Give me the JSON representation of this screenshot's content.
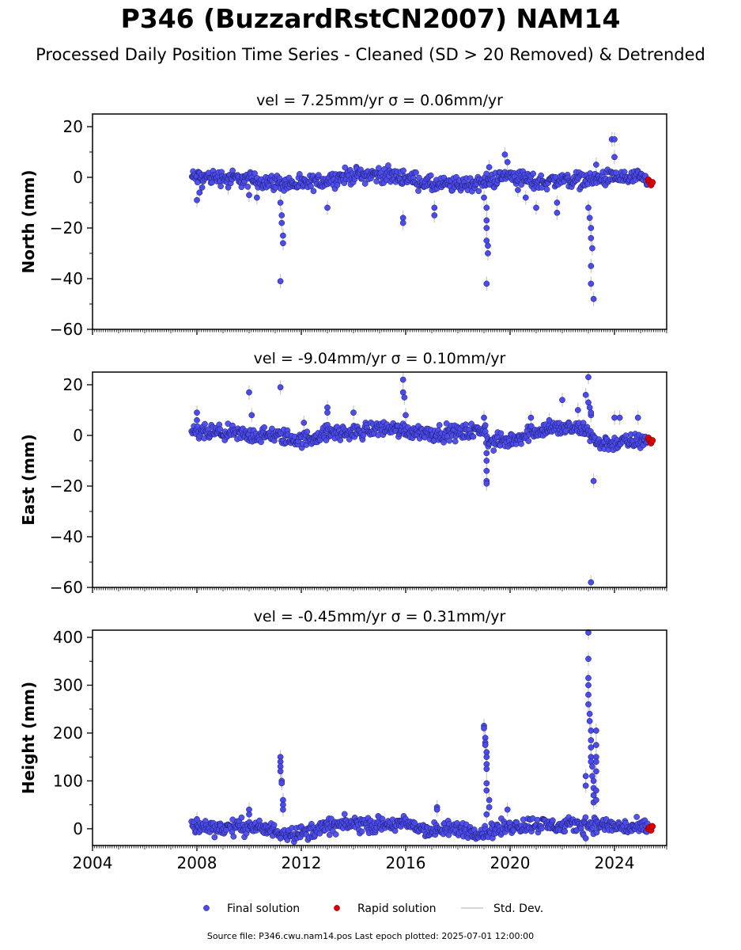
{
  "header": {
    "title": "P346 (BuzzardRstCN2007) NAM14",
    "subtitle": "Processed Daily Position Time Series - Cleaned (SD > 20 Removed) & Detrended"
  },
  "footer": {
    "source": "Source file: P346.cwu.nam14.pos  Last epoch plotted: 2025-07-01 12:00:00"
  },
  "colors": {
    "final": "#4a4aee",
    "final_edge": "#1a1a55",
    "rapid": "#dd0000",
    "std": "#c8c8c8"
  },
  "chart_data": [
    {
      "type": "scatter",
      "title": "vel = 7.25mm/yr   σ = 0.06mm/yr",
      "ylabel": "North (mm)",
      "xlim": [
        2004,
        2026
      ],
      "ylim": [
        -60,
        25
      ],
      "yticks": [
        -60,
        -40,
        -20,
        0,
        20
      ],
      "xticks": [
        2004,
        2008,
        2012,
        2016,
        2020,
        2024
      ],
      "show_xticklabels": false,
      "series": [
        {
          "name": "Final solution",
          "trend": [
            [
              2007.8,
              0
            ],
            [
              2008.5,
              0
            ],
            [
              2009,
              0
            ],
            [
              2010,
              -1
            ],
            [
              2011,
              -2
            ],
            [
              2012,
              -3
            ],
            [
              2013,
              -1
            ],
            [
              2014,
              1
            ],
            [
              2015,
              1
            ],
            [
              2016,
              0
            ],
            [
              2017,
              -3
            ],
            [
              2018,
              -3
            ],
            [
              2019,
              -2
            ],
            [
              2020,
              1
            ],
            [
              2021,
              -2
            ],
            [
              2022,
              -1
            ],
            [
              2023,
              -1
            ],
            [
              2024,
              0
            ],
            [
              2025.3,
              -1
            ]
          ],
          "outliers": [
            [
              2008.0,
              -9
            ],
            [
              2008.1,
              -6
            ],
            [
              2008.2,
              -4
            ],
            [
              2009.2,
              -4
            ],
            [
              2010.0,
              -7
            ],
            [
              2010.3,
              -8
            ],
            [
              2011.2,
              -10
            ],
            [
              2011.25,
              -15
            ],
            [
              2011.25,
              -18
            ],
            [
              2011.3,
              -23
            ],
            [
              2011.3,
              -26
            ],
            [
              2011.2,
              -41
            ],
            [
              2013.0,
              -12
            ],
            [
              2015.9,
              -16
            ],
            [
              2015.9,
              -18
            ],
            [
              2017.1,
              -12
            ],
            [
              2017.1,
              -15
            ],
            [
              2019.0,
              -8
            ],
            [
              2019.1,
              -12
            ],
            [
              2019.1,
              -17
            ],
            [
              2019.1,
              -20
            ],
            [
              2019.1,
              -25
            ],
            [
              2019.15,
              -27
            ],
            [
              2019.15,
              -30
            ],
            [
              2019.1,
              -42
            ],
            [
              2019.2,
              4
            ],
            [
              2019.8,
              9
            ],
            [
              2019.9,
              6
            ],
            [
              2020.3,
              -5
            ],
            [
              2020.6,
              -8
            ],
            [
              2021.0,
              -12
            ],
            [
              2021.8,
              -10
            ],
            [
              2021.8,
              -14
            ],
            [
              2023.0,
              -12
            ],
            [
              2023.05,
              -16
            ],
            [
              2023.1,
              -20
            ],
            [
              2023.1,
              -24
            ],
            [
              2023.15,
              -28
            ],
            [
              2023.1,
              -35
            ],
            [
              2023.1,
              -42
            ],
            [
              2023.2,
              -48
            ],
            [
              2023.3,
              5
            ],
            [
              2023.9,
              15
            ],
            [
              2024.0,
              15
            ],
            [
              2024.0,
              8
            ]
          ]
        },
        {
          "name": "Rapid solution",
          "points": [
            [
              2025.3,
              -1
            ],
            [
              2025.35,
              -2
            ],
            [
              2025.4,
              -3
            ],
            [
              2025.45,
              -2
            ]
          ]
        }
      ]
    },
    {
      "type": "scatter",
      "title": "vel = -9.04mm/yr   σ = 0.10mm/yr",
      "ylabel": "East (mm)",
      "xlim": [
        2004,
        2026
      ],
      "ylim": [
        -60,
        25
      ],
      "yticks": [
        -60,
        -40,
        -20,
        0,
        20
      ],
      "xticks": [
        2004,
        2008,
        2012,
        2016,
        2020,
        2024
      ],
      "show_xticklabels": false,
      "series": [
        {
          "name": "Final solution",
          "trend": [
            [
              2007.8,
              1
            ],
            [
              2008.5,
              1
            ],
            [
              2009,
              1
            ],
            [
              2010,
              0
            ],
            [
              2011,
              0
            ],
            [
              2012,
              -2
            ],
            [
              2013,
              1
            ],
            [
              2014,
              1
            ],
            [
              2015,
              3
            ],
            [
              2016,
              2
            ],
            [
              2017,
              1
            ],
            [
              2018,
              1
            ],
            [
              2019,
              2
            ],
            [
              2019.2,
              -3
            ],
            [
              2020,
              -2
            ],
            [
              2021,
              2
            ],
            [
              2022,
              3
            ],
            [
              2023,
              2
            ],
            [
              2023.3,
              -3
            ],
            [
              2024,
              -3
            ],
            [
              2025.3,
              -2
            ]
          ],
          "outliers": [
            [
              2008.0,
              9
            ],
            [
              2008.0,
              6
            ],
            [
              2010.0,
              17
            ],
            [
              2010.1,
              8
            ],
            [
              2011.2,
              19
            ],
            [
              2012.1,
              5
            ],
            [
              2013.0,
              11
            ],
            [
              2013.0,
              9
            ],
            [
              2014.0,
              9
            ],
            [
              2015.9,
              22
            ],
            [
              2015.9,
              17
            ],
            [
              2015.95,
              15
            ],
            [
              2016.0,
              8
            ],
            [
              2019.0,
              7
            ],
            [
              2019.05,
              4
            ],
            [
              2019.1,
              -7
            ],
            [
              2019.1,
              -10
            ],
            [
              2019.1,
              -14
            ],
            [
              2019.1,
              -18
            ],
            [
              2019.1,
              -19
            ],
            [
              2020.8,
              7
            ],
            [
              2021.5,
              6
            ],
            [
              2022.0,
              14
            ],
            [
              2022.6,
              10
            ],
            [
              2022.9,
              16
            ],
            [
              2023.0,
              23
            ],
            [
              2023.0,
              13
            ],
            [
              2023.05,
              11
            ],
            [
              2023.1,
              8
            ],
            [
              2023.1,
              9
            ],
            [
              2023.2,
              -18
            ],
            [
              2023.1,
              -58
            ],
            [
              2024.0,
              7
            ],
            [
              2024.2,
              7
            ],
            [
              2024.9,
              7
            ]
          ]
        },
        {
          "name": "Rapid solution",
          "points": [
            [
              2025.3,
              -1
            ],
            [
              2025.35,
              -2
            ],
            [
              2025.4,
              -3
            ],
            [
              2025.45,
              -2
            ]
          ]
        }
      ]
    },
    {
      "type": "scatter",
      "title": "vel = -0.45mm/yr   σ = 0.31mm/yr",
      "ylabel": "Height (mm)",
      "xlim": [
        2004,
        2026
      ],
      "ylim": [
        -35,
        415
      ],
      "yticks": [
        0,
        100,
        200,
        300,
        400
      ],
      "xticks": [
        2004,
        2008,
        2012,
        2016,
        2020,
        2024
      ],
      "show_xticklabels": true,
      "series": [
        {
          "name": "Final solution",
          "trend": [
            [
              2007.8,
              5
            ],
            [
              2008.5,
              3
            ],
            [
              2009,
              2
            ],
            [
              2010,
              5
            ],
            [
              2011,
              -5
            ],
            [
              2012,
              -10
            ],
            [
              2013,
              5
            ],
            [
              2014,
              10
            ],
            [
              2015,
              8
            ],
            [
              2016,
              10
            ],
            [
              2017,
              -5
            ],
            [
              2018,
              0
            ],
            [
              2019,
              -8
            ],
            [
              2020,
              5
            ],
            [
              2021,
              10
            ],
            [
              2022,
              5
            ],
            [
              2023,
              10
            ],
            [
              2024,
              5
            ],
            [
              2025.3,
              0
            ]
          ],
          "outliers": [
            [
              2008.0,
              20
            ],
            [
              2010.0,
              40
            ],
            [
              2010.0,
              30
            ],
            [
              2011.2,
              150
            ],
            [
              2011.2,
              140
            ],
            [
              2011.2,
              130
            ],
            [
              2011.2,
              120
            ],
            [
              2011.25,
              100
            ],
            [
              2011.25,
              95
            ],
            [
              2011.3,
              60
            ],
            [
              2011.3,
              50
            ],
            [
              2011.3,
              40
            ],
            [
              2011.2,
              -20
            ],
            [
              2017.2,
              45
            ],
            [
              2017.2,
              40
            ],
            [
              2019.0,
              215
            ],
            [
              2019.0,
              210
            ],
            [
              2019.05,
              190
            ],
            [
              2019.05,
              180
            ],
            [
              2019.05,
              175
            ],
            [
              2019.1,
              160
            ],
            [
              2019.1,
              150
            ],
            [
              2019.1,
              135
            ],
            [
              2019.1,
              125
            ],
            [
              2019.1,
              95
            ],
            [
              2019.1,
              80
            ],
            [
              2019.2,
              60
            ],
            [
              2019.2,
              45
            ],
            [
              2019.1,
              30
            ],
            [
              2019.9,
              40
            ],
            [
              2022.9,
              110
            ],
            [
              2022.9,
              90
            ],
            [
              2023.0,
              410
            ],
            [
              2023.0,
              355
            ],
            [
              2023.0,
              315
            ],
            [
              2023.0,
              300
            ],
            [
              2023.0,
              280
            ],
            [
              2023.0,
              260
            ],
            [
              2023.05,
              240
            ],
            [
              2023.05,
              225
            ],
            [
              2023.1,
              205
            ],
            [
              2023.1,
              185
            ],
            [
              2023.1,
              170
            ],
            [
              2023.1,
              150
            ],
            [
              2023.1,
              140
            ],
            [
              2023.15,
              130
            ],
            [
              2023.15,
              110
            ],
            [
              2023.2,
              100
            ],
            [
              2023.2,
              85
            ],
            [
              2023.2,
              70
            ],
            [
              2023.2,
              55
            ],
            [
              2023.3,
              205
            ],
            [
              2023.3,
              175
            ],
            [
              2023.3,
              150
            ],
            [
              2023.3,
              140
            ],
            [
              2023.3,
              120
            ],
            [
              2023.3,
              80
            ],
            [
              2023.3,
              60
            ],
            [
              2022.9,
              -20
            ]
          ]
        },
        {
          "name": "Rapid solution",
          "points": [
            [
              2025.3,
              0
            ],
            [
              2025.35,
              3
            ],
            [
              2025.4,
              -3
            ],
            [
              2025.45,
              5
            ]
          ]
        }
      ]
    }
  ],
  "legend": {
    "position": "bottom-center",
    "items": [
      {
        "label": "Final solution",
        "kind": "marker",
        "color": "#4a4aee"
      },
      {
        "label": "Rapid solution",
        "kind": "marker",
        "color": "#dd0000"
      },
      {
        "label": "Std. Dev.",
        "kind": "line",
        "color": "#c8c8c8"
      }
    ]
  }
}
